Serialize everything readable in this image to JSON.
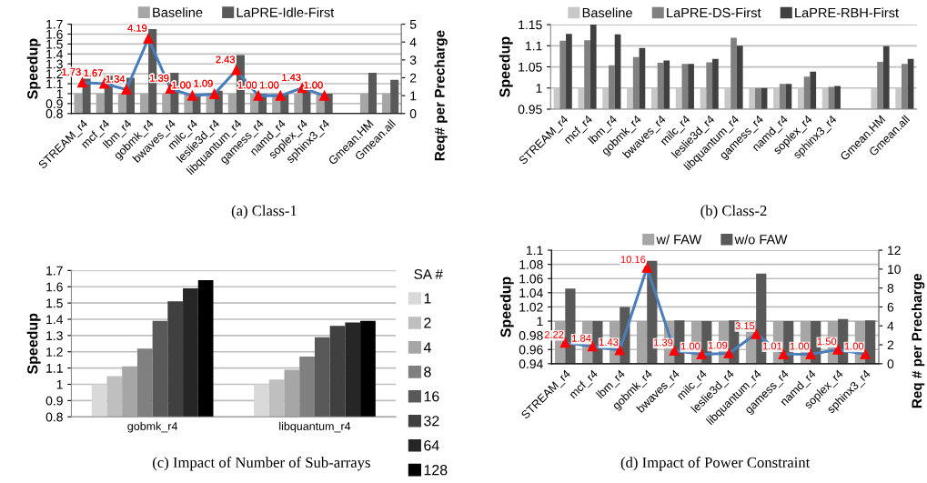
{
  "chart_data": [
    {
      "type": "bar",
      "categories": [
        "STREAM_r4",
        "mcf_r4",
        "lbm_r4",
        "gobmk_r4",
        "bwaves_r4",
        "milc_r4",
        "leslie3d_r4",
        "libquantum_r4",
        "gamess_r4",
        "namd_r4",
        "soplex_r4",
        "sphinx3_r4",
        null,
        "Gmean.HM",
        "Gmean.all"
      ],
      "series": [
        {
          "name": "Baseline",
          "color": "#a6a6a6",
          "values": [
            1,
            1,
            1,
            1,
            1,
            1,
            1,
            1,
            1,
            1,
            1,
            1,
            null,
            1,
            1
          ]
        },
        {
          "name": "LaPRE-Idle-First",
          "color": "#595959",
          "values": [
            1.15,
            1.18,
            1.16,
            1.65,
            1.21,
            1.0,
            1.03,
            1.39,
            1.0,
            1.0,
            1.05,
            1.0,
            null,
            1.21,
            1.14
          ]
        },
        {
          "type": "line",
          "axis": "y2",
          "color": "#4a7ebb",
          "colors": [
            "#ff0000",
            "#ff0000",
            "#ff0000",
            "#ff0000",
            "#ff0000",
            "#ff0000",
            "#ff0000",
            "#ff0000",
            "#ff0000",
            "#ff0000",
            "#ff0000",
            "#ff0000",
            null,
            null,
            null
          ],
          "values": [
            1.73,
            1.67,
            1.34,
            4.19,
            1.39,
            1.0,
            1.09,
            2.43,
            1.0,
            1.0,
            1.43,
            1.0,
            null,
            null,
            null
          ],
          "value_labels": [
            "1.73",
            "1.67",
            "1.34",
            "4.19",
            "1.39",
            "1.00",
            "1.09",
            "2.43",
            "1.00",
            "1.00",
            "1.43",
            "1.00",
            null,
            null,
            null
          ]
        }
      ],
      "ylabel": "Speedup",
      "y2label": "Req# per Precharge",
      "ylim": [
        0.8,
        1.7
      ],
      "yticks": [
        0.8,
        0.9,
        1,
        1.1,
        1.2,
        1.3,
        1.4,
        1.5,
        1.6,
        1.7
      ],
      "y2lim": [
        0,
        5
      ],
      "y2ticks": [
        0,
        1,
        2,
        3,
        4,
        5
      ],
      "grid": "y",
      "legend": "top",
      "marker": "triangle",
      "annotations": [
        "(a) Class-1"
      ]
    },
    {
      "type": "bar",
      "categories": [
        "STREAM_r4",
        "mcf_r4",
        "lbm_r4",
        "gobmk_r4",
        "bwaves_r4",
        "milc_r4",
        "leslie3d_r4",
        "libquantum_r4",
        "gamess_r4",
        "namd_r4",
        "soplex_r4",
        "sphinx3_r4",
        null,
        "Gmean.HM",
        "Gmean.all"
      ],
      "series": [
        {
          "name": "Baseline",
          "color": "#c8c8c8",
          "values": [
            1,
            1,
            1,
            1,
            1,
            1,
            1,
            1,
            1,
            1,
            1,
            1,
            null,
            1,
            1
          ]
        },
        {
          "name": "LaPRE-DS-First",
          "color": "#808080",
          "values": [
            1.112,
            1.113,
            1.054,
            1.073,
            1.06,
            1.057,
            1.061,
            1.119,
            1.0,
            1.01,
            1.027,
            1.003,
            null,
            1.062,
            1.057
          ]
        },
        {
          "name": "LaPRE-RBH-First",
          "color": "#404040",
          "values": [
            1.128,
            1.15,
            1.127,
            1.095,
            1.065,
            1.057,
            1.069,
            1.1,
            1.0,
            1.01,
            1.039,
            1.005,
            null,
            1.099,
            1.069
          ]
        }
      ],
      "ylabel": "Speedup",
      "ylim": [
        0.95,
        1.15
      ],
      "yticks": [
        0.95,
        1,
        1.05,
        1.1,
        1.15
      ],
      "grid": "y",
      "legend": "top",
      "annotations": [
        "(b) Class-2"
      ]
    },
    {
      "type": "bar",
      "categories": [
        "gobmk_r4",
        "libquantum_r4"
      ],
      "series": [
        {
          "name": "1",
          "color": "#d9d9d9",
          "values": [
            1.0,
            1.0
          ]
        },
        {
          "name": "2",
          "color": "#bfbfbf",
          "values": [
            1.05,
            1.03
          ]
        },
        {
          "name": "4",
          "color": "#a6a6a6",
          "values": [
            1.11,
            1.09
          ]
        },
        {
          "name": "8",
          "color": "#808080",
          "values": [
            1.22,
            1.17
          ]
        },
        {
          "name": "16",
          "color": "#595959",
          "values": [
            1.39,
            1.29
          ]
        },
        {
          "name": "32",
          "color": "#404040",
          "values": [
            1.51,
            1.36
          ]
        },
        {
          "name": "64",
          "color": "#262626",
          "values": [
            1.59,
            1.38
          ]
        },
        {
          "name": "128",
          "color": "#000000",
          "values": [
            1.64,
            1.39
          ]
        }
      ],
      "ylabel": "Speedup",
      "ylim": [
        0.8,
        1.7
      ],
      "yticks": [
        0.8,
        0.9,
        1,
        1.1,
        1.2,
        1.3,
        1.4,
        1.5,
        1.6,
        1.7
      ],
      "grid": "y",
      "legend": "right",
      "legend_title": "SA #",
      "annotations": [
        "(c) Impact of Number of Sub-arrays"
      ]
    },
    {
      "type": "bar",
      "categories": [
        "STREAM_r4",
        "mcf_r4",
        "lbm_r4",
        "gobmk_r4",
        "bwaves_r4",
        "milc_r4",
        "leslie3d_r4",
        "libquantum_r4",
        "gamess_r4",
        "namd_r4",
        "soplex_r4",
        "sphinx3_r4"
      ],
      "series": [
        {
          "name": "w/ FAW",
          "color": "#a6a6a6",
          "values": [
            1,
            1,
            1,
            1,
            1,
            1,
            1,
            1,
            1,
            1,
            1,
            1
          ]
        },
        {
          "name": "w/o FAW",
          "color": "#595959",
          "values": [
            1.046,
            1.0,
            1.02,
            1.085,
            1.001,
            1.0,
            1.001,
            1.067,
            1.0,
            1.0,
            1.003,
            1.001
          ]
        },
        {
          "type": "line",
          "axis": "y2",
          "color": "#4a7ebb",
          "colors": [
            "#ff0000",
            "#ff0000",
            "#ff0000",
            "#ff0000",
            "#ff0000",
            "#ff0000",
            "#ff0000",
            "#ff0000",
            "#ff0000",
            "#ff0000",
            "#ff0000",
            "#ff0000"
          ],
          "values": [
            2.22,
            1.84,
            1.43,
            10.16,
            1.39,
            1.0,
            1.09,
            3.15,
            1.01,
            1.0,
            1.5,
            1.0
          ],
          "value_labels": [
            "2.22",
            "1.84",
            "1.43",
            "10.16",
            "1.39",
            "1.00",
            "1.09",
            "3.15",
            "1.01",
            "1.00",
            "1.50",
            "1.00"
          ]
        }
      ],
      "ylabel": "Speedup",
      "y2label": "Req # per Precharge",
      "ylim": [
        0.94,
        1.1
      ],
      "yticks": [
        0.94,
        0.96,
        0.98,
        1,
        1.02,
        1.04,
        1.06,
        1.08,
        1.1
      ],
      "y2lim": [
        0,
        12
      ],
      "y2ticks": [
        0,
        2,
        4,
        6,
        8,
        10,
        12
      ],
      "grid": "y",
      "legend": "top",
      "marker": "triangle",
      "annotations": [
        "(d) Impact of Power Constraint"
      ]
    }
  ]
}
